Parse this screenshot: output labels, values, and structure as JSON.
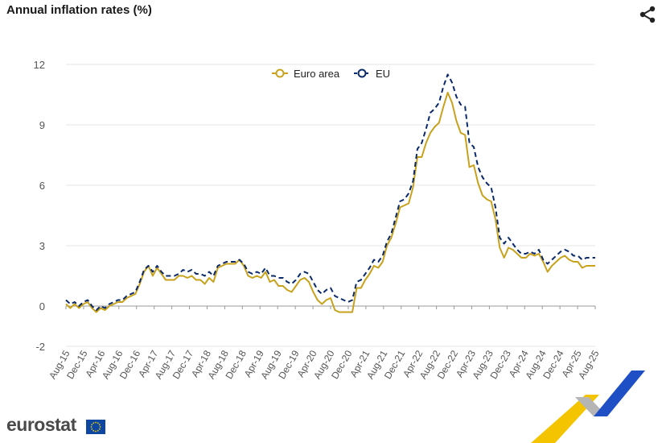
{
  "header": {
    "title": "Annual inflation rates (%)"
  },
  "icons": {
    "share": "share-icon",
    "flag": "eu-flag-icon"
  },
  "brand": {
    "name": "eurostat"
  },
  "colors": {
    "euro_area": "#c8a21c",
    "eu": "#0b2a6b",
    "grid": "#e6e6e6",
    "axis_text": "#555555"
  },
  "chart_data": {
    "type": "line",
    "title": "Annual inflation rates (%)",
    "xlabel": "",
    "ylabel": "",
    "ylim": [
      -2,
      12
    ],
    "yticks": [
      -2,
      0,
      3,
      6,
      9,
      12
    ],
    "grid": true,
    "legend": "top-center",
    "x_tick_labels": [
      "Aug-15",
      "Dec-15",
      "Apr-16",
      "Aug-16",
      "Dec-16",
      "Apr-17",
      "Aug-17",
      "Dec-17",
      "Apr-18",
      "Aug-18",
      "Dec-18",
      "Apr-19",
      "Aug-19",
      "Dec-19",
      "Apr-20",
      "Aug-20",
      "Dec-20",
      "Apr-21",
      "Aug-21",
      "Dec-21",
      "Apr-22",
      "Aug-22",
      "Dec-22",
      "Apr-23",
      "Aug-23",
      "Dec-23",
      "Apr-24",
      "Aug-24",
      "Dec-24",
      "Apr-25",
      "Aug-25"
    ],
    "series": [
      {
        "name": "Euro area",
        "style": "solid",
        "values": [
          0.1,
          -0.1,
          0.1,
          -0.1,
          0.1,
          0.2,
          -0.1,
          -0.3,
          -0.1,
          -0.2,
          0.0,
          0.1,
          0.2,
          0.2,
          0.4,
          0.5,
          0.6,
          1.1,
          1.7,
          2.0,
          1.5,
          1.9,
          1.6,
          1.3,
          1.3,
          1.3,
          1.5,
          1.5,
          1.4,
          1.5,
          1.3,
          1.3,
          1.1,
          1.4,
          1.2,
          1.9,
          2.0,
          2.1,
          2.1,
          2.1,
          2.3,
          2.0,
          1.5,
          1.4,
          1.5,
          1.4,
          1.7,
          1.2,
          1.3,
          1.0,
          1.0,
          0.8,
          0.7,
          1.0,
          1.3,
          1.4,
          1.2,
          0.7,
          0.3,
          0.1,
          0.3,
          0.4,
          -0.2,
          -0.3,
          -0.3,
          -0.3,
          -0.3,
          0.9,
          0.9,
          1.3,
          1.6,
          2.0,
          1.9,
          2.2,
          3.0,
          3.4,
          4.1,
          4.9,
          5.0,
          5.1,
          5.9,
          7.4,
          7.4,
          8.1,
          8.6,
          8.9,
          9.1,
          9.9,
          10.6,
          10.1,
          9.2,
          8.6,
          8.5,
          6.9,
          7.0,
          6.1,
          5.5,
          5.3,
          5.2,
          4.3,
          2.9,
          2.4,
          2.9,
          2.8,
          2.6,
          2.4,
          2.4,
          2.6,
          2.5,
          2.6,
          2.2,
          1.7,
          2.0,
          2.2,
          2.4,
          2.5,
          2.3,
          2.2,
          2.2,
          1.9,
          2.0,
          2.0,
          2.0
        ],
        "y_start": 0.4,
        "note": ""
      },
      {
        "name": "EU",
        "style": "dashed",
        "values": [
          0.3,
          0.1,
          0.2,
          0.0,
          0.2,
          0.3,
          0.0,
          -0.2,
          0.0,
          -0.1,
          0.1,
          0.2,
          0.3,
          0.3,
          0.5,
          0.6,
          0.7,
          1.2,
          1.8,
          2.0,
          1.7,
          2.0,
          1.7,
          1.5,
          1.5,
          1.5,
          1.6,
          1.8,
          1.7,
          1.8,
          1.6,
          1.6,
          1.5,
          1.7,
          1.5,
          2.0,
          2.1,
          2.2,
          2.2,
          2.2,
          2.3,
          2.1,
          1.7,
          1.6,
          1.7,
          1.6,
          1.9,
          1.5,
          1.5,
          1.4,
          1.4,
          1.2,
          1.1,
          1.3,
          1.6,
          1.7,
          1.6,
          1.2,
          0.8,
          0.6,
          0.8,
          0.9,
          0.5,
          0.4,
          0.3,
          0.2,
          0.3,
          1.2,
          1.3,
          1.6,
          1.9,
          2.3,
          2.2,
          2.5,
          3.2,
          3.6,
          4.4,
          5.2,
          5.3,
          5.6,
          6.2,
          7.8,
          8.1,
          8.8,
          9.6,
          9.8,
          10.1,
          10.9,
          11.5,
          11.1,
          10.4,
          10.0,
          9.9,
          8.1,
          7.9,
          6.9,
          6.4,
          6.1,
          5.9,
          4.9,
          3.4,
          3.1,
          3.4,
          3.1,
          2.8,
          2.6,
          2.6,
          2.7,
          2.6,
          2.8,
          2.3,
          2.1,
          2.3,
          2.5,
          2.7,
          2.8,
          2.7,
          2.5,
          2.5,
          2.3,
          2.4,
          2.4,
          2.4
        ]
      }
    ]
  }
}
